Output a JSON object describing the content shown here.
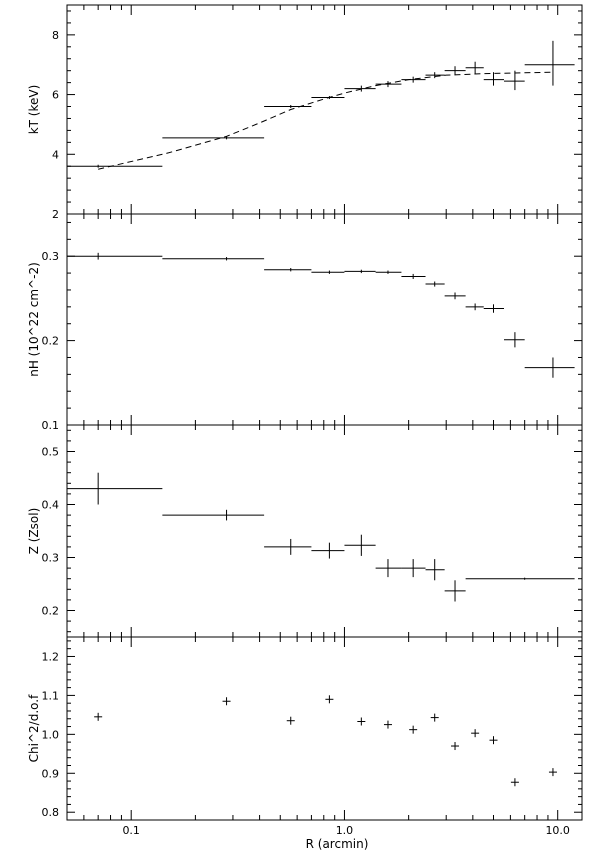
{
  "chart_data": [
    {
      "type": "scatter",
      "ylabel": "kT (keV)",
      "ylim": [
        2,
        9
      ],
      "yscale": "linear",
      "yticks": [
        2,
        4,
        6,
        8
      ],
      "ytick_labels": [
        "2",
        "4",
        "6",
        "8"
      ],
      "points": [
        {
          "x": 0.07,
          "y": 3.6,
          "xlo": 0.05,
          "xhi": 0.14,
          "ylo": 3.55,
          "yhi": 3.65
        },
        {
          "x": 0.28,
          "y": 4.55,
          "xlo": 0.14,
          "xhi": 0.42,
          "ylo": 4.5,
          "yhi": 4.6
        },
        {
          "x": 0.56,
          "y": 5.6,
          "xlo": 0.42,
          "xhi": 0.7,
          "ylo": 5.55,
          "yhi": 5.65
        },
        {
          "x": 0.85,
          "y": 5.9,
          "xlo": 0.7,
          "xhi": 1.0,
          "ylo": 5.85,
          "yhi": 5.95
        },
        {
          "x": 1.2,
          "y": 6.2,
          "xlo": 1.0,
          "xhi": 1.4,
          "ylo": 6.1,
          "yhi": 6.3
        },
        {
          "x": 1.6,
          "y": 6.35,
          "xlo": 1.4,
          "xhi": 1.85,
          "ylo": 6.25,
          "yhi": 6.45
        },
        {
          "x": 2.1,
          "y": 6.5,
          "xlo": 1.85,
          "xhi": 2.4,
          "ylo": 6.4,
          "yhi": 6.6
        },
        {
          "x": 2.65,
          "y": 6.65,
          "xlo": 2.4,
          "xhi": 2.95,
          "ylo": 6.55,
          "yhi": 6.75
        },
        {
          "x": 3.3,
          "y": 6.8,
          "xlo": 2.95,
          "xhi": 3.7,
          "ylo": 6.65,
          "yhi": 6.95
        },
        {
          "x": 4.1,
          "y": 6.9,
          "xlo": 3.7,
          "xhi": 4.5,
          "ylo": 6.7,
          "yhi": 7.1
        },
        {
          "x": 5.0,
          "y": 6.5,
          "xlo": 4.5,
          "xhi": 5.6,
          "ylo": 6.3,
          "yhi": 6.75
        },
        {
          "x": 6.3,
          "y": 6.45,
          "xlo": 5.6,
          "xhi": 7.0,
          "ylo": 6.15,
          "yhi": 6.8
        },
        {
          "x": 9.5,
          "y": 7.0,
          "xlo": 7.0,
          "xhi": 12.0,
          "ylo": 6.3,
          "yhi": 7.8
        }
      ],
      "model_line": {
        "x": [
          0.07,
          0.15,
          0.28,
          0.4,
          0.56,
          0.8,
          1.0,
          1.4,
          2.0,
          3.0,
          4.5,
          6.0,
          9.5
        ],
        "y": [
          3.5,
          4.05,
          4.6,
          5.05,
          5.5,
          5.85,
          6.05,
          6.3,
          6.5,
          6.65,
          6.7,
          6.72,
          6.75
        ]
      }
    },
    {
      "type": "scatter",
      "ylabel": "nH (10^22 cm^-2)",
      "ylim": [
        0.1,
        0.35
      ],
      "yscale": "linear",
      "yticks": [
        0.1,
        0.2,
        0.3
      ],
      "ytick_labels": [
        "0.1",
        "0.2",
        "0.3"
      ],
      "points": [
        {
          "x": 0.07,
          "y": 0.3,
          "xlo": 0.05,
          "xhi": 0.14,
          "ylo": 0.296,
          "yhi": 0.304
        },
        {
          "x": 0.28,
          "y": 0.297,
          "xlo": 0.14,
          "xhi": 0.42,
          "ylo": 0.295,
          "yhi": 0.299
        },
        {
          "x": 0.56,
          "y": 0.284,
          "xlo": 0.42,
          "xhi": 0.7,
          "ylo": 0.282,
          "yhi": 0.286
        },
        {
          "x": 0.85,
          "y": 0.281,
          "xlo": 0.7,
          "xhi": 1.0,
          "ylo": 0.279,
          "yhi": 0.283
        },
        {
          "x": 1.2,
          "y": 0.282,
          "xlo": 1.0,
          "xhi": 1.4,
          "ylo": 0.28,
          "yhi": 0.284
        },
        {
          "x": 1.6,
          "y": 0.281,
          "xlo": 1.4,
          "xhi": 1.85,
          "ylo": 0.279,
          "yhi": 0.283
        },
        {
          "x": 2.1,
          "y": 0.276,
          "xlo": 1.85,
          "xhi": 2.4,
          "ylo": 0.273,
          "yhi": 0.279
        },
        {
          "x": 2.65,
          "y": 0.267,
          "xlo": 2.4,
          "xhi": 2.95,
          "ylo": 0.264,
          "yhi": 0.27
        },
        {
          "x": 3.3,
          "y": 0.253,
          "xlo": 2.95,
          "xhi": 3.7,
          "ylo": 0.249,
          "yhi": 0.257
        },
        {
          "x": 4.1,
          "y": 0.24,
          "xlo": 3.7,
          "xhi": 4.5,
          "ylo": 0.236,
          "yhi": 0.244
        },
        {
          "x": 5.0,
          "y": 0.238,
          "xlo": 4.5,
          "xhi": 5.6,
          "ylo": 0.233,
          "yhi": 0.243
        },
        {
          "x": 6.3,
          "y": 0.201,
          "xlo": 5.6,
          "xhi": 7.0,
          "ylo": 0.192,
          "yhi": 0.21
        },
        {
          "x": 9.5,
          "y": 0.168,
          "xlo": 7.0,
          "xhi": 12.0,
          "ylo": 0.156,
          "yhi": 0.18
        }
      ]
    },
    {
      "type": "scatter",
      "ylabel": "Z (Zsol)",
      "ylim": [
        0.15,
        0.55
      ],
      "yscale": "linear",
      "yticks": [
        0.2,
        0.3,
        0.4,
        0.5
      ],
      "ytick_labels": [
        "0.2",
        "0.3",
        "0.4",
        "0.5"
      ],
      "points": [
        {
          "x": 0.07,
          "y": 0.43,
          "xlo": 0.05,
          "xhi": 0.14,
          "ylo": 0.4,
          "yhi": 0.46
        },
        {
          "x": 0.28,
          "y": 0.38,
          "xlo": 0.14,
          "xhi": 0.42,
          "ylo": 0.37,
          "yhi": 0.39
        },
        {
          "x": 0.56,
          "y": 0.32,
          "xlo": 0.42,
          "xhi": 0.7,
          "ylo": 0.305,
          "yhi": 0.335
        },
        {
          "x": 0.85,
          "y": 0.313,
          "xlo": 0.7,
          "xhi": 1.0,
          "ylo": 0.298,
          "yhi": 0.328
        },
        {
          "x": 1.2,
          "y": 0.323,
          "xlo": 1.0,
          "xhi": 1.4,
          "ylo": 0.303,
          "yhi": 0.343
        },
        {
          "x": 1.6,
          "y": 0.28,
          "xlo": 1.4,
          "xhi": 1.85,
          "ylo": 0.263,
          "yhi": 0.297
        },
        {
          "x": 2.1,
          "y": 0.28,
          "xlo": 1.85,
          "xhi": 2.4,
          "ylo": 0.263,
          "yhi": 0.297
        },
        {
          "x": 2.65,
          "y": 0.277,
          "xlo": 2.4,
          "xhi": 2.95,
          "ylo": 0.257,
          "yhi": 0.297
        },
        {
          "x": 3.3,
          "y": 0.237,
          "xlo": 2.95,
          "xhi": 3.7,
          "ylo": 0.217,
          "yhi": 0.257
        },
        {
          "x": 7.0,
          "y": 0.26,
          "xlo": 3.7,
          "xhi": 12.0,
          "ylo": 0.258,
          "yhi": 0.262
        }
      ]
    },
    {
      "type": "scatter",
      "ylabel": "Chi^2/d.o.f",
      "ylim": [
        0.78,
        1.25
      ],
      "yscale": "linear",
      "yticks": [
        0.8,
        0.9,
        1.0,
        1.1,
        1.2
      ],
      "ytick_labels": [
        "0.8",
        "0.9",
        "1.0",
        "1.1",
        "1.2"
      ],
      "points": [
        {
          "x": 0.07,
          "y": 1.045
        },
        {
          "x": 0.28,
          "y": 1.085
        },
        {
          "x": 0.56,
          "y": 1.035
        },
        {
          "x": 0.85,
          "y": 1.09
        },
        {
          "x": 1.2,
          "y": 1.033
        },
        {
          "x": 1.6,
          "y": 1.025
        },
        {
          "x": 2.1,
          "y": 1.012
        },
        {
          "x": 2.65,
          "y": 1.043
        },
        {
          "x": 3.3,
          "y": 0.97
        },
        {
          "x": 4.1,
          "y": 1.003
        },
        {
          "x": 5.0,
          "y": 0.985
        },
        {
          "x": 6.3,
          "y": 0.877
        },
        {
          "x": 9.5,
          "y": 0.903
        }
      ]
    }
  ],
  "x_axis": {
    "label": "R (arcmin)",
    "scale": "log",
    "xlim": [
      0.05,
      13.0
    ],
    "ticks": [
      0.1,
      1.0,
      10.0
    ],
    "tick_labels": [
      "0.1",
      "1.0",
      "10.0"
    ]
  },
  "colors": {
    "ink": "#000000",
    "background": "#ffffff"
  }
}
